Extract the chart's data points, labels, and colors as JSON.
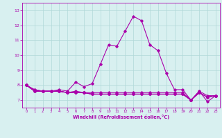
{
  "xlabel": "Windchill (Refroidissement éolien,°C)",
  "background_color": "#d8f0f0",
  "line_color": "#aa00aa",
  "x_values": [
    0,
    1,
    2,
    3,
    4,
    5,
    6,
    7,
    8,
    9,
    10,
    11,
    12,
    13,
    14,
    15,
    16,
    17,
    18,
    19,
    20,
    21,
    22,
    23
  ],
  "series": [
    [
      8.0,
      7.7,
      7.6,
      7.6,
      7.7,
      7.6,
      8.2,
      7.9,
      8.1,
      9.4,
      10.7,
      10.6,
      11.6,
      12.6,
      12.3,
      10.7,
      10.3,
      8.8,
      7.7,
      7.7,
      7.0,
      7.6,
      6.9,
      7.3
    ],
    [
      8.0,
      7.7,
      7.6,
      7.6,
      7.6,
      7.5,
      7.6,
      7.5,
      7.5,
      7.5,
      7.5,
      7.5,
      7.5,
      7.5,
      7.5,
      7.5,
      7.5,
      7.5,
      7.5,
      7.5,
      7.0,
      7.6,
      7.3,
      7.3
    ],
    [
      8.0,
      7.6,
      7.6,
      7.6,
      7.6,
      7.5,
      7.5,
      7.5,
      7.4,
      7.4,
      7.4,
      7.4,
      7.4,
      7.4,
      7.4,
      7.4,
      7.4,
      7.4,
      7.4,
      7.4,
      7.0,
      7.5,
      7.2,
      7.3
    ],
    [
      8.0,
      7.6,
      7.6,
      7.6,
      7.6,
      7.5,
      7.5,
      7.5,
      7.4,
      7.4,
      7.4,
      7.4,
      7.4,
      7.4,
      7.4,
      7.4,
      7.4,
      7.4,
      7.4,
      7.4,
      7.0,
      7.5,
      7.2,
      7.3
    ],
    [
      8.0,
      7.6,
      7.6,
      7.6,
      7.6,
      7.5,
      7.5,
      7.5,
      7.4,
      7.4,
      7.4,
      7.4,
      7.4,
      7.4,
      7.4,
      7.4,
      7.4,
      7.4,
      7.4,
      7.4,
      7.0,
      7.5,
      7.2,
      7.3
    ]
  ],
  "ylim": [
    6.5,
    13.5
  ],
  "yticks": [
    7,
    8,
    9,
    10,
    11,
    12,
    13
  ],
  "xlim": [
    -0.5,
    23.5
  ],
  "grid_color": "#b0d8d8",
  "marker": "D",
  "markersize": 1.8,
  "linewidth": 0.8
}
